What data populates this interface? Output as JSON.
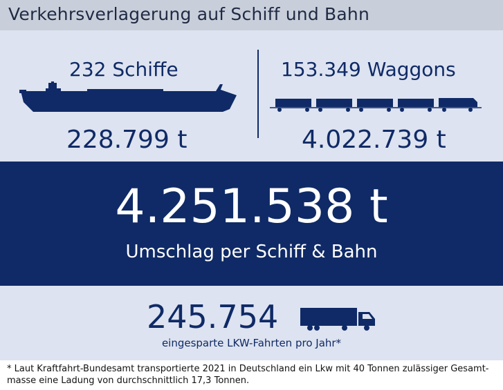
{
  "title": "Verkehrsverlagerung auf Schiff und Bahn",
  "ships": {
    "count_label": "232 Schiffe",
    "tons": "228.799 t",
    "icon": "cargo-ship-icon"
  },
  "rail": {
    "count_label": "153.349 Waggons",
    "tons": "4.022.739 t",
    "icon": "freight-train-icon"
  },
  "total": {
    "value": "4.251.538 t",
    "label": "Umschlag per Schiff & Bahn"
  },
  "trucks": {
    "value": "245.754",
    "label": "eingesparte LKW-Fahrten pro Jahr*",
    "icon": "truck-icon"
  },
  "footnote": {
    "line1": "* Laut Kraftfahrt-Bundesamt transportierte 2021 in Deutschland ein Lkw mit 40 Tonnen zulässiger Gesamt-",
    "line2": "masse eine Ladung von durchschnittlich 17,3 Tonnen."
  },
  "colors": {
    "navy": "#0f2a66",
    "panel": "#dde3f0",
    "title_bar": "#c9cfda"
  }
}
